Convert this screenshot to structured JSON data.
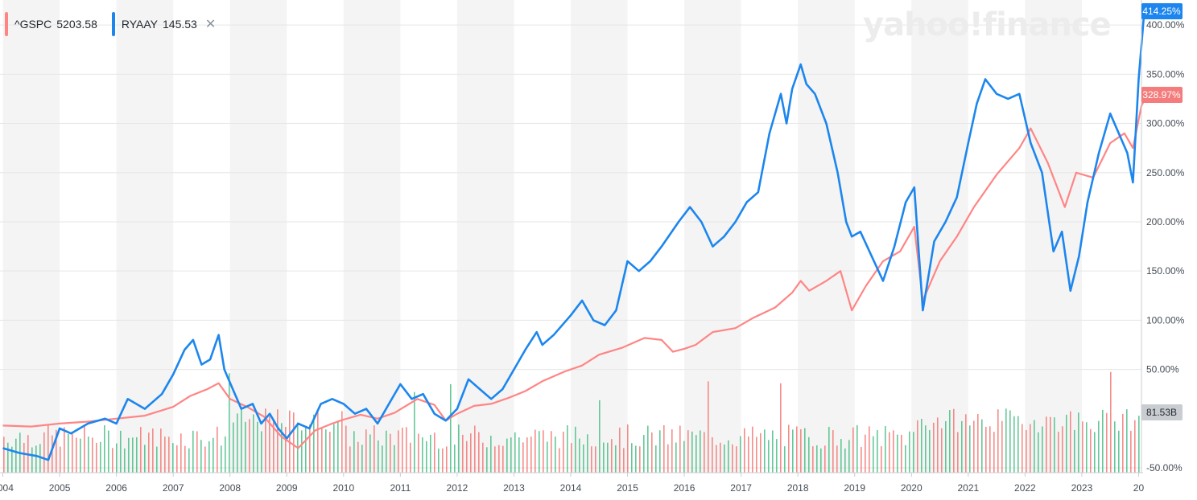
{
  "legend": {
    "series_a": {
      "symbol": "^GSPC",
      "value": "5203.58",
      "color": "#ff8585"
    },
    "series_b": {
      "symbol": "RYAAY",
      "value": "145.53",
      "color": "#1c86ee",
      "close": "✕"
    }
  },
  "watermark": "yahoo!finance",
  "badges": {
    "ryaay": {
      "text": "414.25%",
      "color": "#1c86ee"
    },
    "gspc": {
      "text": "328.97%",
      "color": "#f47c7c"
    },
    "volume": {
      "text": "81.53B",
      "color": "#c9cdd1"
    }
  },
  "chart_data": {
    "type": "line",
    "y_axis": {
      "side": "right",
      "unit": "%",
      "ticks": [
        -50,
        50,
        100,
        150,
        200,
        250,
        300,
        350,
        400
      ],
      "tick_labels": [
        "-50.00%",
        "50.00%",
        "100.00%",
        "150.00%",
        "200.00%",
        "250.00%",
        "300.00%",
        "350.00%",
        "400.00%"
      ],
      "ylim": [
        -50,
        414
      ]
    },
    "x_axis": {
      "tick_labels": [
        "2004",
        "2005",
        "2006",
        "2007",
        "2008",
        "2009",
        "2010",
        "2011",
        "2012",
        "2013",
        "2014",
        "2015",
        "2016",
        "2017",
        "2018",
        "2019",
        "2020",
        "2021",
        "2022",
        "2023",
        "20"
      ],
      "xlim": [
        2004,
        2024
      ]
    },
    "grid": true,
    "series": [
      {
        "name": "^GSPC",
        "color": "#ff8585",
        "points": [
          [
            2004,
            -7
          ],
          [
            2004.5,
            -8
          ],
          [
            2005,
            -5
          ],
          [
            2005.5,
            -3
          ],
          [
            2006,
            0
          ],
          [
            2006.5,
            3
          ],
          [
            2007,
            12
          ],
          [
            2007.3,
            23
          ],
          [
            2007.6,
            30
          ],
          [
            2007.8,
            36
          ],
          [
            2008,
            20
          ],
          [
            2008.3,
            12
          ],
          [
            2008.6,
            2
          ],
          [
            2008.9,
            -18
          ],
          [
            2009.2,
            -30
          ],
          [
            2009.5,
            -12
          ],
          [
            2009.8,
            -5
          ],
          [
            2010,
            -1
          ],
          [
            2010.3,
            4
          ],
          [
            2010.6,
            0
          ],
          [
            2010.9,
            6
          ],
          [
            2011.3,
            20
          ],
          [
            2011.6,
            14
          ],
          [
            2011.8,
            -2
          ],
          [
            2012,
            5
          ],
          [
            2012.3,
            13
          ],
          [
            2012.6,
            15
          ],
          [
            2012.9,
            21
          ],
          [
            2013.2,
            28
          ],
          [
            2013.5,
            38
          ],
          [
            2013.9,
            48
          ],
          [
            2014.2,
            54
          ],
          [
            2014.5,
            65
          ],
          [
            2014.9,
            72
          ],
          [
            2015.3,
            82
          ],
          [
            2015.6,
            80
          ],
          [
            2015.8,
            68
          ],
          [
            2016,
            71
          ],
          [
            2016.2,
            75
          ],
          [
            2016.5,
            88
          ],
          [
            2016.9,
            92
          ],
          [
            2017.2,
            102
          ],
          [
            2017.6,
            113
          ],
          [
            2017.9,
            128
          ],
          [
            2018.05,
            140
          ],
          [
            2018.2,
            130
          ],
          [
            2018.5,
            140
          ],
          [
            2018.75,
            150
          ],
          [
            2018.95,
            110
          ],
          [
            2019.2,
            135
          ],
          [
            2019.5,
            160
          ],
          [
            2019.8,
            170
          ],
          [
            2020.05,
            195
          ],
          [
            2020.2,
            120
          ],
          [
            2020.5,
            160
          ],
          [
            2020.8,
            185
          ],
          [
            2021.1,
            215
          ],
          [
            2021.5,
            248
          ],
          [
            2021.9,
            275
          ],
          [
            2022.1,
            295
          ],
          [
            2022.4,
            260
          ],
          [
            2022.7,
            215
          ],
          [
            2022.9,
            250
          ],
          [
            2023.2,
            245
          ],
          [
            2023.5,
            280
          ],
          [
            2023.75,
            290
          ],
          [
            2023.9,
            275
          ],
          [
            2024.05,
            318
          ],
          [
            2024.15,
            329
          ]
        ]
      },
      {
        "name": "RYAAY",
        "color": "#1c86ee",
        "points": [
          [
            2004,
            -30
          ],
          [
            2004.3,
            -35
          ],
          [
            2004.6,
            -38
          ],
          [
            2004.8,
            -42
          ],
          [
            2005,
            -10
          ],
          [
            2005.2,
            -15
          ],
          [
            2005.5,
            -5
          ],
          [
            2005.8,
            0
          ],
          [
            2006,
            -5
          ],
          [
            2006.2,
            20
          ],
          [
            2006.5,
            10
          ],
          [
            2006.8,
            25
          ],
          [
            2007,
            45
          ],
          [
            2007.2,
            70
          ],
          [
            2007.35,
            80
          ],
          [
            2007.5,
            55
          ],
          [
            2007.65,
            60
          ],
          [
            2007.8,
            85
          ],
          [
            2007.9,
            50
          ],
          [
            2008.05,
            30
          ],
          [
            2008.2,
            10
          ],
          [
            2008.4,
            15
          ],
          [
            2008.55,
            -5
          ],
          [
            2008.7,
            5
          ],
          [
            2008.85,
            -10
          ],
          [
            2009,
            -20
          ],
          [
            2009.2,
            -5
          ],
          [
            2009.4,
            -10
          ],
          [
            2009.6,
            15
          ],
          [
            2009.8,
            20
          ],
          [
            2010,
            15
          ],
          [
            2010.2,
            5
          ],
          [
            2010.4,
            10
          ],
          [
            2010.6,
            -5
          ],
          [
            2010.8,
            15
          ],
          [
            2011,
            35
          ],
          [
            2011.2,
            20
          ],
          [
            2011.4,
            25
          ],
          [
            2011.6,
            5
          ],
          [
            2011.8,
            -2
          ],
          [
            2012,
            10
          ],
          [
            2012.2,
            40
          ],
          [
            2012.4,
            30
          ],
          [
            2012.6,
            20
          ],
          [
            2012.8,
            30
          ],
          [
            2013,
            50
          ],
          [
            2013.2,
            70
          ],
          [
            2013.4,
            88
          ],
          [
            2013.5,
            75
          ],
          [
            2013.7,
            85
          ],
          [
            2014,
            105
          ],
          [
            2014.2,
            120
          ],
          [
            2014.4,
            100
          ],
          [
            2014.6,
            95
          ],
          [
            2014.8,
            110
          ],
          [
            2015,
            160
          ],
          [
            2015.2,
            150
          ],
          [
            2015.4,
            160
          ],
          [
            2015.6,
            175
          ],
          [
            2015.9,
            200
          ],
          [
            2016.1,
            215
          ],
          [
            2016.3,
            200
          ],
          [
            2016.5,
            175
          ],
          [
            2016.7,
            185
          ],
          [
            2016.9,
            200
          ],
          [
            2017.1,
            220
          ],
          [
            2017.3,
            230
          ],
          [
            2017.5,
            290
          ],
          [
            2017.7,
            330
          ],
          [
            2017.8,
            300
          ],
          [
            2017.9,
            335
          ],
          [
            2018.05,
            360
          ],
          [
            2018.15,
            340
          ],
          [
            2018.3,
            330
          ],
          [
            2018.5,
            300
          ],
          [
            2018.7,
            250
          ],
          [
            2018.85,
            200
          ],
          [
            2018.95,
            185
          ],
          [
            2019.1,
            190
          ],
          [
            2019.3,
            165
          ],
          [
            2019.5,
            140
          ],
          [
            2019.7,
            175
          ],
          [
            2019.9,
            220
          ],
          [
            2020.05,
            235
          ],
          [
            2020.2,
            110
          ],
          [
            2020.4,
            180
          ],
          [
            2020.6,
            200
          ],
          [
            2020.8,
            225
          ],
          [
            2021,
            280
          ],
          [
            2021.15,
            320
          ],
          [
            2021.3,
            345
          ],
          [
            2021.5,
            330
          ],
          [
            2021.7,
            325
          ],
          [
            2021.9,
            330
          ],
          [
            2022.1,
            280
          ],
          [
            2022.3,
            250
          ],
          [
            2022.5,
            170
          ],
          [
            2022.65,
            190
          ],
          [
            2022.8,
            130
          ],
          [
            2022.95,
            165
          ],
          [
            2023.1,
            220
          ],
          [
            2023.3,
            270
          ],
          [
            2023.5,
            310
          ],
          [
            2023.65,
            290
          ],
          [
            2023.8,
            270
          ],
          [
            2023.9,
            240
          ],
          [
            2024.0,
            345
          ],
          [
            2024.1,
            414
          ]
        ]
      }
    ],
    "volume": {
      "label": "Volume",
      "ylim_note": "bars",
      "colors": {
        "up": "#3eba80",
        "down": "#f2716d"
      }
    }
  }
}
